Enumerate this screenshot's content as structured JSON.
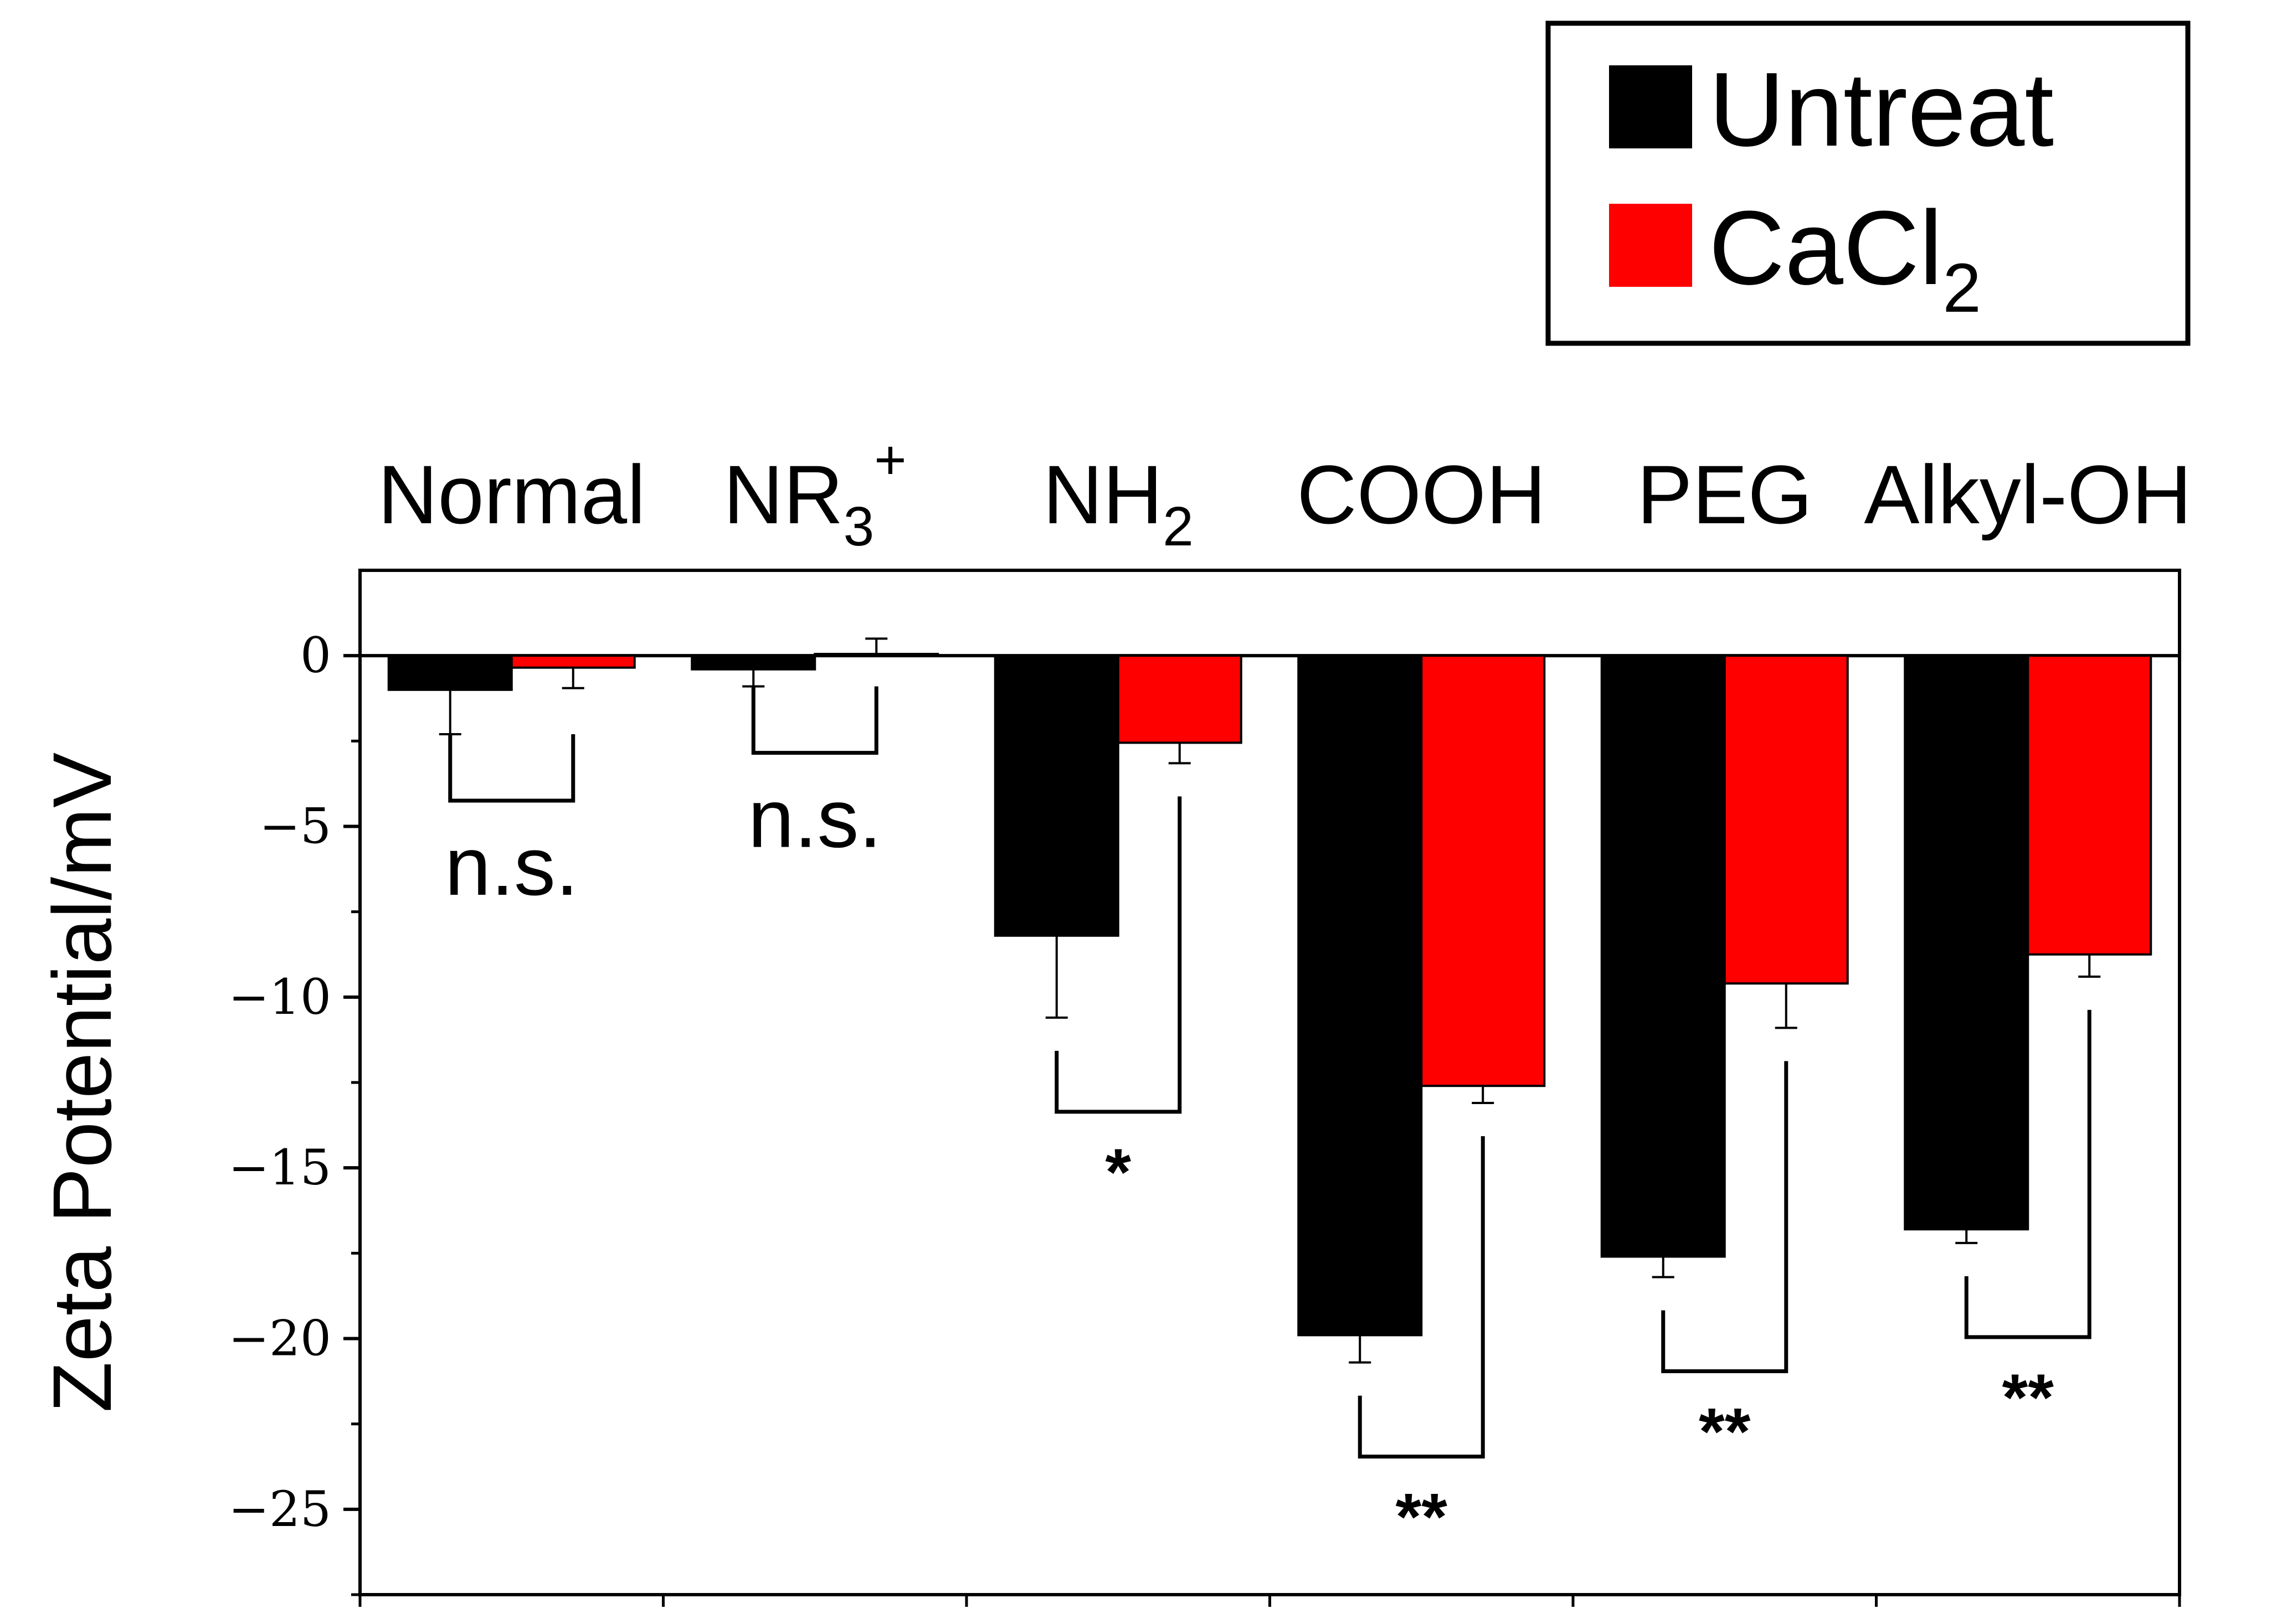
{
  "chart_data": {
    "type": "bar",
    "categories": [
      "Normal",
      "NR3+",
      "NH2",
      "COOH",
      "PEG",
      "Alkyl-OH"
    ],
    "category_labels": [
      {
        "base": "Normal",
        "sub": "",
        "sup": ""
      },
      {
        "base": "NR",
        "sub": "3",
        "sup": "+"
      },
      {
        "base": "NH",
        "sub": "2",
        "sup": ""
      },
      {
        "base": "COOH",
        "sub": "",
        "sup": ""
      },
      {
        "base": "PEG",
        "sub": "",
        "sup": ""
      },
      {
        "base": "Alkyl-OH",
        "sub": "",
        "sup": ""
      }
    ],
    "series": [
      {
        "name": "Untreat",
        "color": "#000000",
        "values": [
          -1.0,
          -0.4,
          -8.2,
          -19.9,
          -17.6,
          -16.8
        ],
        "errors": [
          1.3,
          0.5,
          2.4,
          0.8,
          0.6,
          0.4
        ]
      },
      {
        "name": "CaCl2",
        "color": "#ff0000",
        "values": [
          -0.35,
          0.05,
          -2.55,
          -12.6,
          -9.6,
          -8.75
        ],
        "errors": [
          0.6,
          0.45,
          0.6,
          0.5,
          1.3,
          0.65
        ]
      }
    ],
    "legend": {
      "position": "top-right",
      "items": [
        {
          "base": "Untreat",
          "sub": ""
        },
        {
          "base": "CaCl",
          "sub": "2"
        }
      ]
    },
    "significance": [
      "n.s.",
      "n.s.",
      "*",
      "**",
      "**",
      "**"
    ],
    "ylabel": "Zeta Potential/mV",
    "xlabel": "",
    "title": "",
    "ylim": [
      -27.5,
      2.5
    ],
    "yticks": [
      0,
      -5,
      -10,
      -15,
      -20,
      -25
    ],
    "ytick_labels": [
      "0",
      "−5",
      "−10",
      "−15",
      "−20",
      "−25"
    ],
    "category_axis_position": "top",
    "grid": false
  }
}
